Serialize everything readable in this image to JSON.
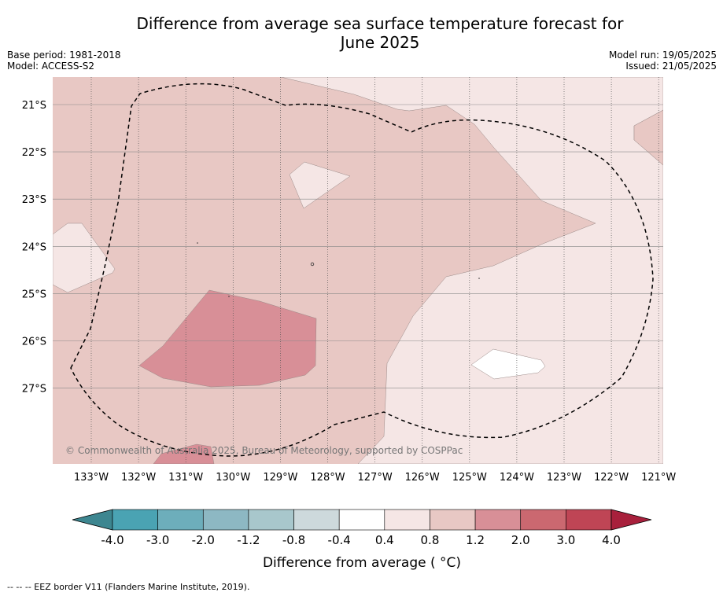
{
  "title_line1": "Difference from average sea surface temperature forecast for",
  "title_line2": "June 2025",
  "base_period": "Base period: 1981-2018",
  "model": "Model: ACCESS-S2",
  "model_run": "Model run: 19/05/2025",
  "issued": "Issued: 21/05/2025",
  "credit": "© Commonwealth of Australia 2025, Bureau of Meteorology, supported by COSPPac",
  "lat_labels": [
    "21°S",
    "22°S",
    "23°S",
    "24°S",
    "25°S",
    "26°S",
    "27°S"
  ],
  "lon_labels": [
    "133°W",
    "132°W",
    "131°W",
    "130°W",
    "129°W",
    "128°W",
    "127°W",
    "126°W",
    "125°W",
    "124°W",
    "123°W",
    "122°W",
    "121°W"
  ],
  "colorbar": {
    "title": "Difference from average ( °C)",
    "labels": [
      "-4.0",
      "-3.0",
      "-2.0",
      "-1.2",
      "-0.8",
      "-0.4",
      "0.4",
      "0.8",
      "1.2",
      "2.0",
      "3.0",
      "4.0"
    ],
    "colors": [
      "#4aa3b3",
      "#6daebb",
      "#8db8c3",
      "#a8c7cc",
      "#cdd9dc",
      "#ffffff",
      "#f5e6e5",
      "#e8c8c4",
      "#d88f97",
      "#cb6870",
      "#bf4555"
    ],
    "under_color": "#3d8690",
    "over_color": "#a8203c"
  },
  "footnote": "--  --  -- EEZ border V11 (Flanders Marine Institute, 2019)."
}
